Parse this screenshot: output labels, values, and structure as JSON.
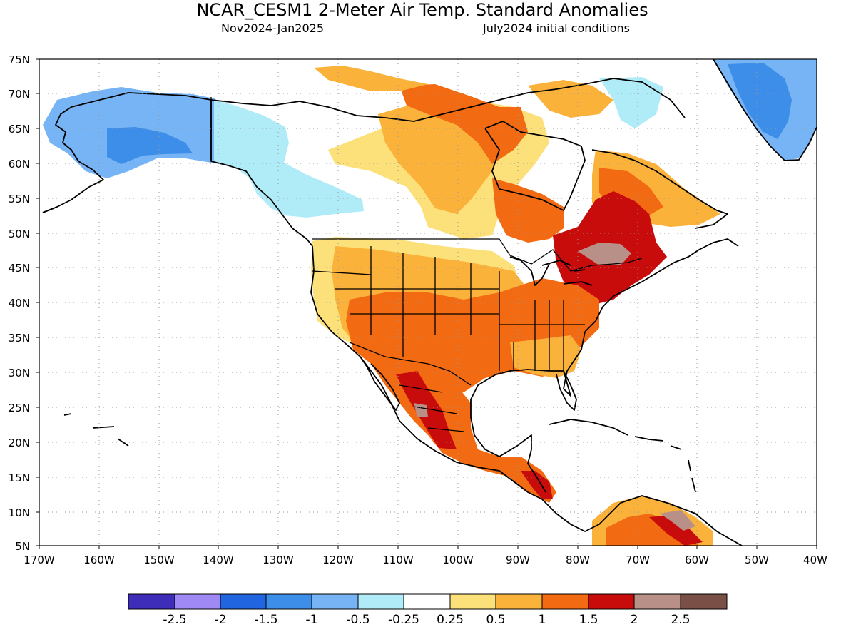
{
  "header": {
    "title": "NCAR_CESM1 2-Meter Air Temp. Standard Anomalies",
    "period": "Nov2024-Jan2025",
    "init": "July2024 initial conditions"
  },
  "axes": {
    "lat_labels": [
      "75N",
      "70N",
      "65N",
      "60N",
      "55N",
      "50N",
      "45N",
      "40N",
      "35N",
      "30N",
      "25N",
      "20N",
      "15N",
      "10N",
      "5N"
    ],
    "lon_labels": [
      "170W",
      "160W",
      "150W",
      "140W",
      "130W",
      "120W",
      "110W",
      "100W",
      "90W",
      "80W",
      "70W",
      "60W",
      "50W",
      "40W"
    ]
  },
  "colorbar": {
    "colors": [
      "#3d2db8",
      "#9f89f5",
      "#2265e0",
      "#3d8ee8",
      "#76b4f5",
      "#b0ecf8",
      "#ffffff",
      "#fce07a",
      "#fbb23a",
      "#f26a12",
      "#c80c0c",
      "#b89088",
      "#7a5046"
    ],
    "labels": [
      "-2.5",
      "-2",
      "-1.5",
      "-1",
      "-0.5",
      "-0.25",
      "0.25",
      "0.5",
      "1",
      "1.5",
      "2",
      "2.5"
    ]
  },
  "palette": {
    "below_1": "#76b4f5",
    "below_05": "#b0ecf8",
    "above_025": "#fce07a",
    "above_05": "#fbb23a",
    "above_1": "#f26a12",
    "above_15": "#c80c0c",
    "above_2": "#b89088",
    "cold_15": "#3d8ee8"
  }
}
